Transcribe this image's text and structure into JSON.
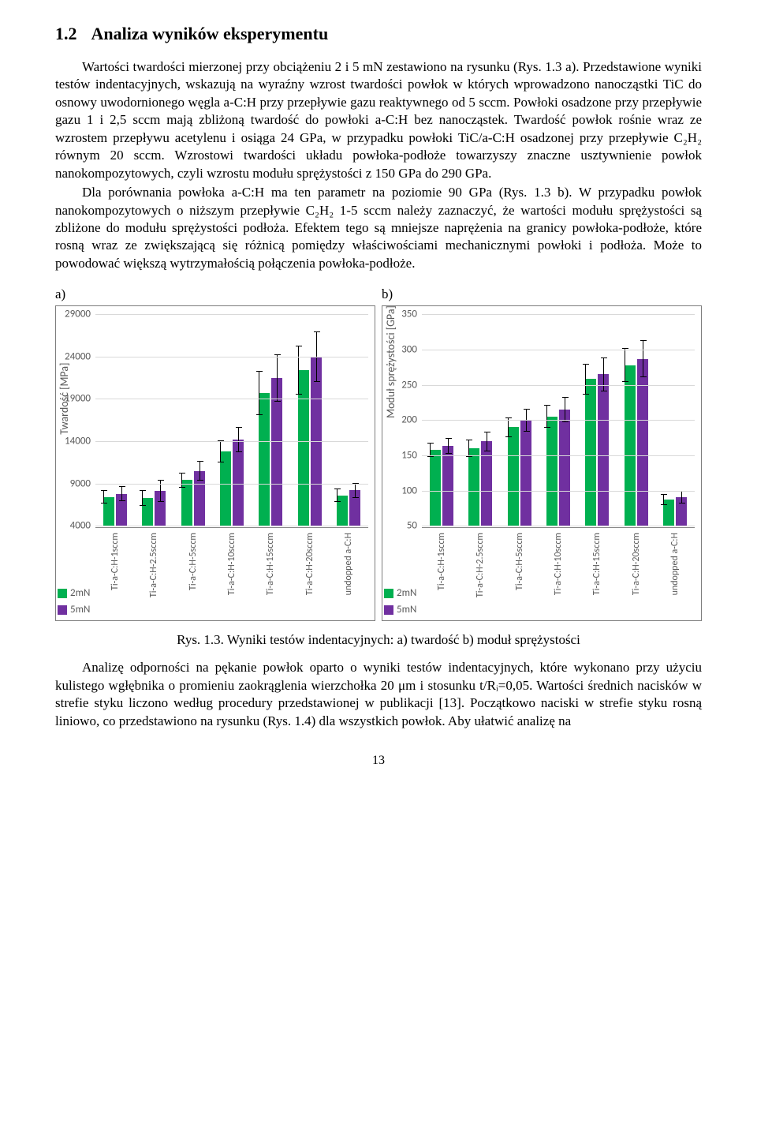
{
  "section": {
    "number": "1.2",
    "title": "Analiza wyników eksperymentu"
  },
  "paragraphs": {
    "p1": "Wartości twardości mierzonej przy obciążeniu 2 i 5 mN zestawiono na  rysunku (Rys. 1.3 a). Przedstawione wyniki testów indentacyjnych, wskazują na wyraźny wzrost twardości powłok w których wprowadzono nanocząstki TiC do osnowy uwodornionego węgla a-C:H przy przepływie gazu reaktywnego od 5 sccm. Powłoki osadzone przy przepływie gazu 1 i 2,5 sccm mają zbliżoną twardość do powłoki a-C:H bez nanocząstek. Twardość powłok rośnie wraz ze wzrostem przepływu acetylenu i osiąga 24 GPa, w przypadku powłoki TiC/a-C:H  osadzonej przy przepływie C₂H₂ równym 20 sccm. Wzrostowi twardości układu powłoka-podłoże towarzyszy znaczne usztywnienie powłok nanokompozytowych, czyli wzrostu modułu sprężystości z 150 GPa do 290 GPa.",
    "p2": "Dla porównania powłoka a-C:H ma ten parametr na poziomie 90 GPa (Rys. 1.3 b). W przypadku powłok nanokompozytowych o niższym przepływie C₂H₂ 1-5 sccm należy zaznaczyć, że wartości modułu sprężystości są zbliżone do modułu sprężystości podłoża. Efektem tego są mniejsze naprężenia na granicy powłoka-podłoże, które rosną wraz ze zwiększającą się różnicą pomiędzy właściwościami mechanicznymi powłoki i podłoża. Może to powodować większą wytrzymałością połączenia powłoka-podłoże.",
    "p3": "Analizę odporności na pękanie powłok oparto o wyniki testów indentacyjnych, które wykonano przy użyciu kulistego wgłębnika o promieniu zaokrąglenia wierzchołka 20 μm i stosunku t/Rᵢ=0,05. Wartości średnich nacisków w strefie styku liczono według procedury przedstawionej w publikacji [13]. Początkowo naciski w strefie styku rosną liniowo, co przedstawiono na rysunku (Rys. 1.4) dla wszystkich powłok. Aby ułatwić analizę na"
  },
  "panel_tags": {
    "a": "a)",
    "b": "b)"
  },
  "chart_a": {
    "type": "bar",
    "y_title": "Twardość [MPa]",
    "y_min": 4000,
    "y_max": 29000,
    "y_ticks": [
      4000,
      9000,
      14000,
      19000,
      24000,
      29000
    ],
    "series": [
      {
        "label": "2mN",
        "color": "#00b050"
      },
      {
        "label": "5mN",
        "color": "#7030a0"
      }
    ],
    "categories": [
      "Ti-a-C:H-1sccm",
      "Ti-a-C:H-2.5sccm",
      "Ti-a-C:H-5sccm",
      "Ti-a-C:H-10sccm",
      "Ti-a-C:H-15sccm",
      "Ti-a-C:H-20sccm",
      "undopped a-C:H"
    ],
    "values_2mN": [
      7400,
      7300,
      9400,
      12800,
      19700,
      22400,
      7600
    ],
    "values_5mN": [
      7800,
      8100,
      10500,
      14200,
      21500,
      24000,
      8200
    ],
    "err_2mN": [
      800,
      900,
      900,
      1300,
      2600,
      2900,
      800
    ],
    "err_5mN": [
      900,
      1300,
      1200,
      1500,
      2800,
      3000,
      900
    ],
    "grid_color": "#d9d9d9",
    "text_color": "#595959",
    "font_family": "Calibri",
    "label_fontsize": 12,
    "tick_fontsize": 13
  },
  "chart_b": {
    "type": "bar",
    "y_title": "Moduł sprężystości [GPa]",
    "y_min": 50,
    "y_max": 350,
    "y_ticks": [
      50,
      100,
      150,
      200,
      250,
      300,
      350
    ],
    "series": [
      {
        "label": "2mN",
        "color": "#00b050"
      },
      {
        "label": "5mN",
        "color": "#7030a0"
      }
    ],
    "categories": [
      "Ti-a-C:H-1sccm",
      "Ti-a-C:H-2.5sccm",
      "Ti-a-C:H-5sccm",
      "Ti-a-C:H-10sccm",
      "Ti-a-C:H-15sccm",
      "Ti-a-C:H-20sccm",
      "undopped a-C:H"
    ],
    "values_2mN": [
      158,
      160,
      190,
      205,
      258,
      278,
      87
    ],
    "values_5mN": [
      163,
      170,
      200,
      215,
      265,
      287,
      91
    ],
    "err_2mN": [
      10,
      12,
      14,
      16,
      22,
      24,
      8
    ],
    "err_5mN": [
      11,
      14,
      16,
      18,
      24,
      26,
      9
    ],
    "grid_color": "#d9d9d9",
    "text_color": "#595959",
    "font_family": "Calibri",
    "label_fontsize": 12,
    "tick_fontsize": 13
  },
  "caption": "Rys. 1.3. Wyniki testów indentacyjnych: a) twardość b) moduł sprężystości",
  "page_number": "13"
}
